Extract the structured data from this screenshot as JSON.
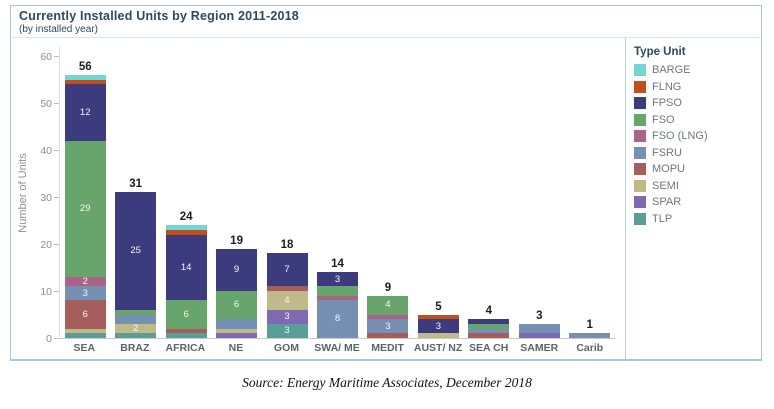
{
  "header": {
    "title": "Currently Installed Units by Region 2011-2018",
    "subtitle": "(by installed year)"
  },
  "source": "Source: Energy Maritime Associates, December 2018",
  "frame_border_color": "#a9c4dd",
  "title_color": "#2b4a5e",
  "chart_data": {
    "type": "bar",
    "stacked": true,
    "title": "Currently Installed Units by Region 2011-2018",
    "subtitle": "(by installed year)",
    "xlabel": "",
    "ylabel": "Number of Units",
    "ylim": [
      0,
      60
    ],
    "yticks": [
      0,
      10,
      20,
      30,
      40,
      50,
      60
    ],
    "grid": false,
    "legend_position": "right",
    "legend": {
      "title": "Type Unit",
      "entries": [
        {
          "name": "BARGE",
          "color": "#72d7d2"
        },
        {
          "name": "FLNG",
          "color": "#c24e1c"
        },
        {
          "name": "FPSO",
          "color": "#3b3b7d"
        },
        {
          "name": "FSO",
          "color": "#68a56c"
        },
        {
          "name": "FSO (LNG)",
          "color": "#ab6486"
        },
        {
          "name": "FSRU",
          "color": "#7590b2"
        },
        {
          "name": "MOPU",
          "color": "#a55e5c"
        },
        {
          "name": "SEMI",
          "color": "#bfba88"
        },
        {
          "name": "SPAR",
          "color": "#8069b0"
        },
        {
          "name": "TLP",
          "color": "#5b9e99"
        }
      ]
    },
    "categories": [
      "SEA",
      "BRAZ",
      "AFRICA",
      "NE",
      "GOM",
      "SWA/ ME",
      "MEDIT",
      "AUST/ NZ",
      "SEA CH",
      "SAMER",
      "Carib"
    ],
    "totals": [
      56,
      31,
      24,
      19,
      18,
      14,
      9,
      5,
      4,
      3,
      1
    ],
    "bars": [
      {
        "category": "SEA",
        "total": 56,
        "segments": [
          {
            "type": "TLP",
            "value": 1
          },
          {
            "type": "SEMI",
            "value": 1
          },
          {
            "type": "MOPU",
            "value": 6,
            "label": "6"
          },
          {
            "type": "FSRU",
            "value": 3,
            "label": "3"
          },
          {
            "type": "FSO (LNG)",
            "value": 2,
            "label": "2"
          },
          {
            "type": "FSO",
            "value": 29,
            "label": "29"
          },
          {
            "type": "FPSO",
            "value": 12,
            "label": "12"
          },
          {
            "type": "FLNG",
            "value": 1
          },
          {
            "type": "BARGE",
            "value": 1
          }
        ]
      },
      {
        "category": "BRAZ",
        "total": 31,
        "segments": [
          {
            "type": "TLP",
            "value": 1
          },
          {
            "type": "SEMI",
            "value": 2,
            "label": "2"
          },
          {
            "type": "FSRU",
            "value": 2
          },
          {
            "type": "FSO",
            "value": 1
          },
          {
            "type": "FPSO",
            "value": 25,
            "label": "25"
          }
        ]
      },
      {
        "category": "AFRICA",
        "total": 24,
        "segments": [
          {
            "type": "TLP",
            "value": 1
          },
          {
            "type": "MOPU",
            "value": 1
          },
          {
            "type": "FSO",
            "value": 6,
            "label": "6"
          },
          {
            "type": "FPSO",
            "value": 14,
            "label": "14"
          },
          {
            "type": "FLNG",
            "value": 1
          },
          {
            "type": "BARGE",
            "value": 1
          }
        ]
      },
      {
        "category": "NE",
        "total": 19,
        "segments": [
          {
            "type": "SPAR",
            "value": 1
          },
          {
            "type": "SEMI",
            "value": 1
          },
          {
            "type": "FSRU",
            "value": 2
          },
          {
            "type": "FSO",
            "value": 6,
            "label": "6"
          },
          {
            "type": "FPSO",
            "value": 9,
            "label": "9"
          }
        ]
      },
      {
        "category": "GOM",
        "total": 18,
        "segments": [
          {
            "type": "TLP",
            "value": 3,
            "label": "3"
          },
          {
            "type": "SPAR",
            "value": 3,
            "label": "3"
          },
          {
            "type": "SEMI",
            "value": 4,
            "label": "4"
          },
          {
            "type": "MOPU",
            "value": 1
          },
          {
            "type": "FPSO",
            "value": 7,
            "label": "7"
          }
        ]
      },
      {
        "category": "SWA/ ME",
        "total": 14,
        "segments": [
          {
            "type": "FSRU",
            "value": 8,
            "label": "8"
          },
          {
            "type": "FSO (LNG)",
            "value": 1
          },
          {
            "type": "FSO",
            "value": 2
          },
          {
            "type": "FPSO",
            "value": 3,
            "label": "3"
          }
        ]
      },
      {
        "category": "MEDIT",
        "total": 9,
        "segments": [
          {
            "type": "MOPU",
            "value": 1
          },
          {
            "type": "FSRU",
            "value": 3,
            "label": "3"
          },
          {
            "type": "FSO (LNG)",
            "value": 1
          },
          {
            "type": "FSO",
            "value": 4,
            "label": "4"
          }
        ]
      },
      {
        "category": "AUST/ NZ",
        "total": 5,
        "segments": [
          {
            "type": "SEMI",
            "value": 1
          },
          {
            "type": "FPSO",
            "value": 3,
            "label": "3"
          },
          {
            "type": "FLNG",
            "value": 1
          }
        ]
      },
      {
        "category": "SEA CH",
        "total": 4,
        "segments": [
          {
            "type": "MOPU",
            "value": 1
          },
          {
            "type": "FSRU",
            "value": 1
          },
          {
            "type": "FSO",
            "value": 1
          },
          {
            "type": "FPSO",
            "value": 1
          }
        ]
      },
      {
        "category": "SAMER",
        "total": 3,
        "segments": [
          {
            "type": "SPAR",
            "value": 1
          },
          {
            "type": "FSRU",
            "value": 2
          }
        ]
      },
      {
        "category": "Carib",
        "total": 1,
        "segments": [
          {
            "type": "FSRU",
            "value": 1
          }
        ]
      }
    ]
  }
}
